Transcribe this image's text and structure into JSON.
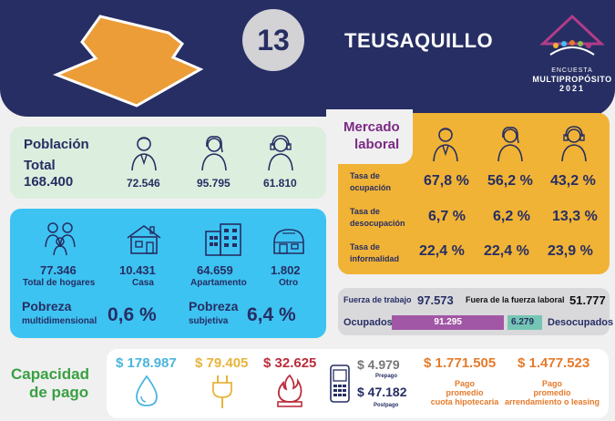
{
  "header": {
    "number": "13",
    "locality": "TEUSAQUILLO",
    "logo": {
      "line1": "ENCUESTA",
      "line2": "MULTIPROPÓSITO",
      "line3": "2021"
    }
  },
  "population": {
    "title": "Población",
    "total_label": "Total",
    "total_value": "168.400",
    "men": "72.546",
    "women": "95.795",
    "other": "61.810"
  },
  "households": {
    "total_value": "77.346",
    "total_label": "Total de hogares",
    "house_value": "10.431",
    "house_label": "Casa",
    "apartment_value": "64.659",
    "apartment_label": "Apartamento",
    "other_value": "1.802",
    "other_label": "Otro",
    "poverty_multi_label1": "Pobreza",
    "poverty_multi_label2": "multidimensional",
    "poverty_multi_value": "0,6 %",
    "poverty_subj_label1": "Pobreza",
    "poverty_subj_label2": "subjetiva",
    "poverty_subj_value": "6,4 %"
  },
  "labor_market": {
    "title1": "Mercado",
    "title2": "laboral",
    "rows": [
      {
        "label1": "Tasa de",
        "label2": "ocupación",
        "values": [
          "67,8 %",
          "56,2 %",
          "43,2 %"
        ]
      },
      {
        "label1": "Tasa de",
        "label2": "desocupación",
        "values": [
          "6,7 %",
          "6,2 %",
          "13,3 %"
        ]
      },
      {
        "label1": "Tasa de",
        "label2": "informalidad",
        "values": [
          "22,4 %",
          "22,4 %",
          "23,9 %"
        ]
      }
    ]
  },
  "workforce": {
    "in_label": "Fuerza de trabajo",
    "in_value": "97.573",
    "out_label": "Fuera de la fuerza laboral",
    "out_value": "51.777",
    "employed_label": "Ocupados",
    "employed_value": "91.295",
    "unemployed_value": "6.279",
    "unemployed_label": "Desocupados",
    "employed_share": 0.9357
  },
  "payment": {
    "title1": "Capacidad",
    "title2": "de pago",
    "water": "$ 178.987",
    "energy": "$ 79.405",
    "gas": "$ 32.625",
    "prepaid_value": "$ 4.979",
    "prepaid_label": "Prepago",
    "postpaid_value": "$ 47.182",
    "postpaid_label": "Postpago",
    "mortgage_value": "$ 1.771.505",
    "mortgage_label1": "Pago",
    "mortgage_label2": "promedio",
    "mortgage_label3": "cuota hipotecaria",
    "lease_value": "$ 1.477.523",
    "lease_label1": "Pago",
    "lease_label2": "promedio",
    "lease_label3": "arrendamiento o leasing"
  },
  "colors": {
    "navy": "#262e63",
    "orange": "#f1b335",
    "map_orange": "#ec9d38",
    "light_blue": "#3dc3f2",
    "green_panel": "#dceedd",
    "purple": "#7a2a83",
    "water_blue": "#4ab5de",
    "energy_yellow": "#e7b43c",
    "gas_red": "#bb2d3b",
    "pay_orange": "#e57b2b",
    "employed_bar": "#a257a6",
    "unemployed_bar": "#75c5b4"
  }
}
